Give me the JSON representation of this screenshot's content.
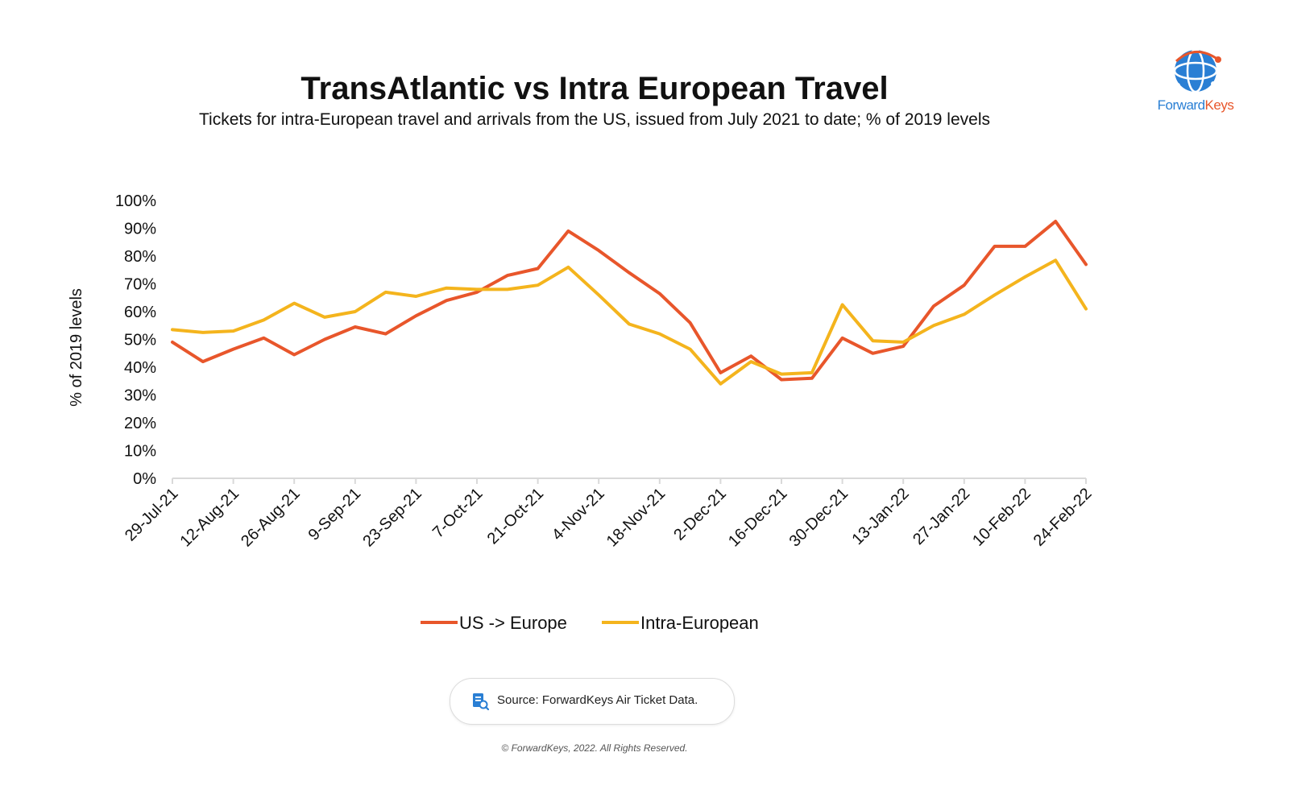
{
  "header": {
    "title": "TransAtlantic vs Intra European Travel",
    "subtitle": "Tickets for intra-European travel and arrivals from the US, issued from July 2021 to date; % of 2019 levels"
  },
  "logo": {
    "name_part1": "Forward",
    "name_part2": "Keys"
  },
  "footer": {
    "source": "Source: ForwardKeys Air Ticket Data.",
    "copyright": "© ForwardKeys, 2022. All Rights Reserved."
  },
  "colors": {
    "us_europe": "#e8562b",
    "intra_european": "#f4b41d",
    "brand_blue": "#2a7fd4"
  },
  "chart_data": {
    "type": "line",
    "title": "TransAtlantic vs Intra European Travel",
    "subtitle": "Tickets for intra-European travel and arrivals from the US, issued from July 2021 to date; % of 2019 levels",
    "ylabel": "% of 2019 levels",
    "xlabel": "",
    "ylim": [
      0,
      100
    ],
    "y_ticks": [
      "0%",
      "10%",
      "20%",
      "30%",
      "40%",
      "50%",
      "60%",
      "70%",
      "80%",
      "90%",
      "100%"
    ],
    "x_tick_labels": [
      "29-Jul-21",
      "12-Aug-21",
      "26-Aug-21",
      "9-Sep-21",
      "23-Sep-21",
      "7-Oct-21",
      "21-Oct-21",
      "4-Nov-21",
      "18-Nov-21",
      "2-Dec-21",
      "16-Dec-21",
      "30-Dec-21",
      "13-Jan-22",
      "27-Jan-22",
      "10-Feb-22",
      "24-Feb-22"
    ],
    "x": [
      "29-Jul-21",
      "5-Aug-21",
      "12-Aug-21",
      "19-Aug-21",
      "26-Aug-21",
      "2-Sep-21",
      "9-Sep-21",
      "16-Sep-21",
      "23-Sep-21",
      "30-Sep-21",
      "7-Oct-21",
      "14-Oct-21",
      "21-Oct-21",
      "28-Oct-21",
      "4-Nov-21",
      "11-Nov-21",
      "18-Nov-21",
      "25-Nov-21",
      "2-Dec-21",
      "9-Dec-21",
      "16-Dec-21",
      "23-Dec-21",
      "30-Dec-21",
      "6-Jan-22",
      "13-Jan-22",
      "20-Jan-22",
      "27-Jan-22",
      "3-Feb-22",
      "10-Feb-22",
      "17-Feb-22",
      "24-Feb-22"
    ],
    "series": [
      {
        "name": "US -> Europe",
        "color": "#e8562b",
        "values": [
          49,
          42,
          46.5,
          50.5,
          44.5,
          50,
          54.5,
          52,
          58.5,
          64,
          67,
          73,
          75.5,
          89,
          82,
          74,
          66.5,
          56,
          38,
          44,
          35.5,
          36,
          50.5,
          45,
          47.5,
          62,
          69.5,
          83.5,
          83.5,
          92.5,
          77
        ]
      },
      {
        "name": "Intra-European",
        "color": "#f4b41d",
        "values": [
          53.5,
          52.5,
          53,
          57,
          63,
          58,
          60,
          67,
          65.5,
          68.5,
          68,
          68,
          69.5,
          76,
          66,
          55.5,
          52,
          46.5,
          34,
          42,
          37.5,
          38,
          62.5,
          49.5,
          49,
          55,
          59,
          66,
          72.5,
          78.5,
          61
        ]
      }
    ],
    "legend_position": "bottom-center",
    "grid": false
  }
}
